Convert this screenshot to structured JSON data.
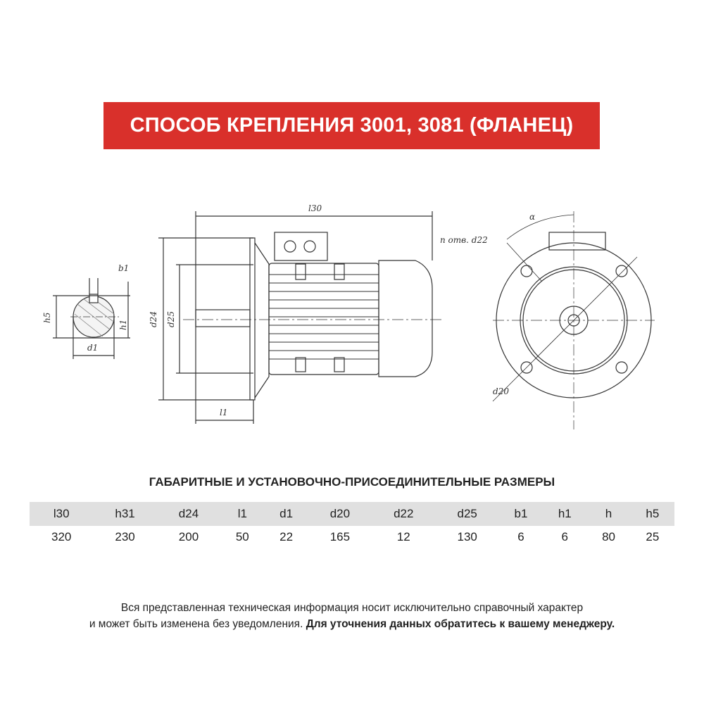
{
  "header": {
    "title": "СПОСОБ КРЕПЛЕНИЯ 3001, 3081 (ФЛАНЕЦ)",
    "color": "#d9302b"
  },
  "drawing": {
    "labels": {
      "l30": "l30",
      "l1": "l1",
      "d24": "d24",
      "d25": "d25",
      "b1": "b1",
      "h5": "h5",
      "h1": "h1",
      "d1": "d1",
      "alpha": "α",
      "n_holes_d22": "n отв. d22",
      "d20": "d20"
    }
  },
  "table": {
    "title": "ГАБАРИТНЫЕ И УСТАНОВОЧНО-ПРИСОЕДИНИТЕЛЬНЫЕ РАЗМЕРЫ",
    "headers": [
      "l30",
      "h31",
      "d24",
      "l1",
      "d1",
      "d20",
      "d22",
      "d25",
      "b1",
      "h1",
      "h",
      "h5"
    ],
    "values": [
      "320",
      "230",
      "200",
      "50",
      "22",
      "165",
      "12",
      "130",
      "6",
      "6",
      "80",
      "25"
    ]
  },
  "footer": {
    "line1": "Вся представленная техническая информация носит исключительно справочный характер",
    "line2": "и может быть изменена без уведомления.",
    "line2_bold": "Для уточнения данных обратитесь к вашему менеджеру."
  }
}
